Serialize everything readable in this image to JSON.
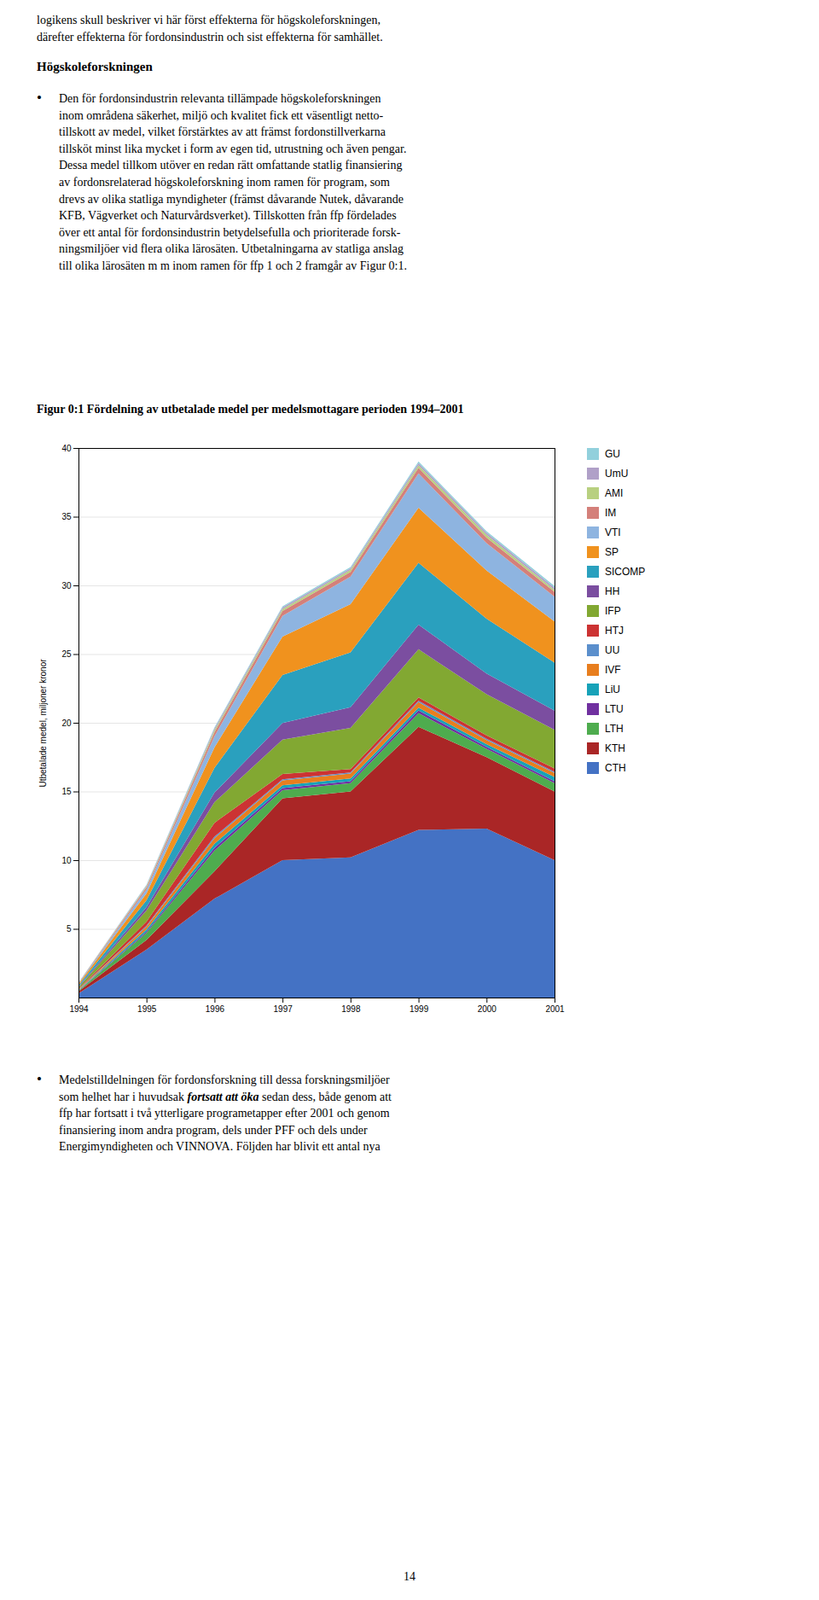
{
  "chart_data": {
    "type": "area",
    "stacked": true,
    "title": "Figur 0:1 Fördelning av utbetalade medel per medelsmottagare perioden 1994–2001",
    "ylabel": "Utbetalade medel, miljoner kronor",
    "x": [
      1994,
      1995,
      1996,
      1997,
      1998,
      1999,
      2000,
      2001
    ],
    "xlim": [
      1994,
      2001
    ],
    "xticks": [
      1994,
      1995,
      1996,
      1997,
      1998,
      1999,
      2000,
      2001
    ],
    "ylim": [
      0,
      40
    ],
    "yticks": [
      5,
      10,
      15,
      20,
      25,
      30,
      35,
      40
    ],
    "grid": true,
    "legend": "right",
    "series": [
      {
        "name": "CTH",
        "color": "#4472C4",
        "values": [
          0.3,
          3.5,
          7.2,
          10.0,
          10.2,
          12.2,
          12.3,
          10.0
        ]
      },
      {
        "name": "KTH",
        "color": "#AA2626",
        "values": [
          0.15,
          0.7,
          2.0,
          4.5,
          4.8,
          7.5,
          5.2,
          5.0
        ]
      },
      {
        "name": "LTH",
        "color": "#4EAC4E",
        "values": [
          0.05,
          0.5,
          1.5,
          0.6,
          0.6,
          1.0,
          0.6,
          0.6
        ]
      },
      {
        "name": "LTU",
        "color": "#7030A0",
        "values": [
          0.02,
          0.1,
          0.2,
          0.15,
          0.15,
          0.2,
          0.15,
          0.15
        ]
      },
      {
        "name": "LiU",
        "color": "#17A2B8",
        "values": [
          0.02,
          0.15,
          0.3,
          0.2,
          0.2,
          0.2,
          0.2,
          0.3
        ]
      },
      {
        "name": "IVF",
        "color": "#E87E1E",
        "values": [
          0.03,
          0.2,
          0.4,
          0.35,
          0.35,
          0.4,
          0.3,
          0.3
        ]
      },
      {
        "name": "UU",
        "color": "#5B8FCC",
        "values": [
          0.02,
          0.08,
          0.12,
          0.08,
          0.08,
          0.1,
          0.08,
          0.08
        ]
      },
      {
        "name": "HTJ",
        "color": "#CC3333",
        "values": [
          0.05,
          0.3,
          1.0,
          0.4,
          0.25,
          0.25,
          0.25,
          0.25
        ]
      },
      {
        "name": "IFP",
        "color": "#82A832",
        "values": [
          0.1,
          0.8,
          1.5,
          2.5,
          3.0,
          3.5,
          3.0,
          2.8
        ]
      },
      {
        "name": "HH",
        "color": "#7B4EA0",
        "values": [
          0.05,
          0.25,
          0.7,
          1.2,
          1.5,
          1.8,
          1.5,
          1.4
        ]
      },
      {
        "name": "SICOMP",
        "color": "#2AA0BE",
        "values": [
          0.1,
          0.5,
          1.8,
          3.5,
          4.0,
          4.5,
          4.0,
          3.5
        ]
      },
      {
        "name": "SP",
        "color": "#F0921E",
        "values": [
          0.1,
          0.5,
          1.5,
          2.8,
          3.5,
          4.0,
          3.5,
          3.0
        ]
      },
      {
        "name": "VTI",
        "color": "#8EB4E0",
        "values": [
          0.05,
          0.3,
          0.8,
          1.5,
          2.0,
          2.5,
          2.0,
          1.8
        ]
      },
      {
        "name": "IM",
        "color": "#D4807A",
        "values": [
          0.02,
          0.15,
          0.3,
          0.35,
          0.35,
          0.4,
          0.4,
          0.35
        ]
      },
      {
        "name": "AMI",
        "color": "#B8D080",
        "values": [
          0.01,
          0.08,
          0.15,
          0.15,
          0.15,
          0.2,
          0.2,
          0.15
        ]
      },
      {
        "name": "UmU",
        "color": "#B0A0C8",
        "values": [
          0.01,
          0.06,
          0.12,
          0.12,
          0.12,
          0.15,
          0.15,
          0.15
        ]
      },
      {
        "name": "GU",
        "color": "#92D0DC",
        "values": [
          0.01,
          0.05,
          0.08,
          0.08,
          0.08,
          0.12,
          0.12,
          0.12
        ]
      }
    ]
  },
  "page_text": {
    "lines_before": [
      "logikens skull beskriver vi här först effekterna för högskoleforskningen,",
      "därefter effekterna för fordonsindustrin och sist effekterna för samhället."
    ],
    "heading": "Högskoleforskningen",
    "bullet": "•",
    "paragraph_lines": [
      "Den för fordonsindustrin relevanta tillämpade högskoleforskningen",
      "inom områdena säkerhet, miljö och kvalitet fick ett väsentligt netto-",
      "tillskott av medel, vilket förstärktes av att främst fordonstillverkarna",
      "tillsköt minst lika mycket i form av egen tid, utrustning och även pengar.",
      "Dessa medel tillkom utöver en redan rätt omfattande statlig finansiering",
      "av fordonsrelaterad högskoleforskning inom ramen för program, som",
      "drevs av olika statliga myndigheter (främst dåvarande Nutek, dåvarande",
      "KFB, Vägverket och Naturvårdsverket). Tillskotten från ffp fördelades",
      "över ett antal för fordonsindustrin betydelsefulla och prioriterade forsk-",
      "ningsmiljöer vid flera olika lärosäten. Utbetalningarna av statliga anslag",
      "till olika lärosäten m m inom ramen för ffp 1 och 2 framgår av Figur 0:1."
    ],
    "paragraph_after_lines": [
      "Medelstilldelningen för fordonsforskning till dessa forskningsmiljöer",
      "som helhet har i huvudsak fortsatt att öka sedan dess, både genom att",
      "ffp har fortsatt i två ytterligare programetapper efter 2001 och genom",
      "finansiering inom andra program, dels under PFF och dels under",
      "Energimyndigheten och VINNOVA. Följden har blivit ett antal nya"
    ],
    "emphasis": "fortsatt att öka",
    "page_number": "14"
  }
}
